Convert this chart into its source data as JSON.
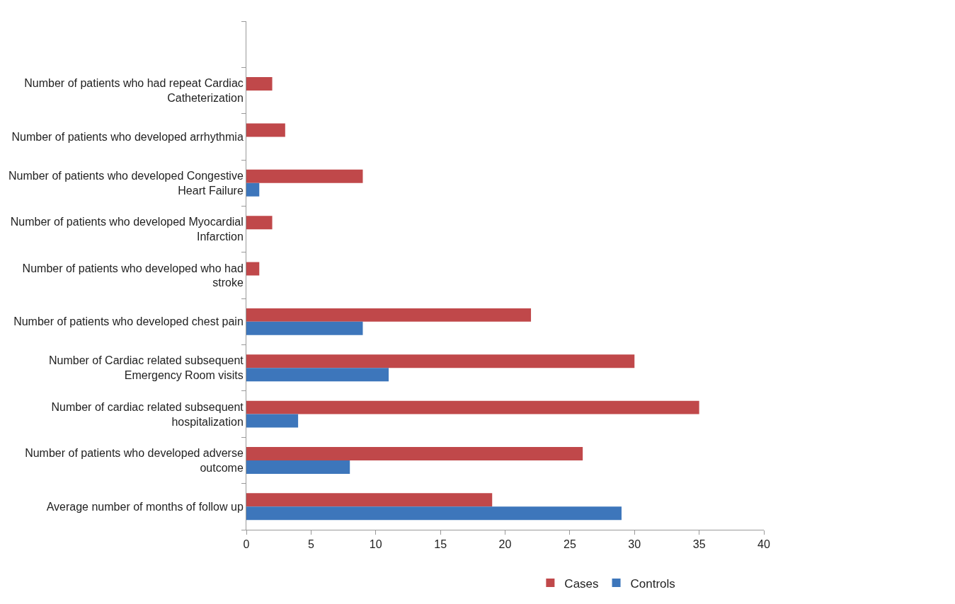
{
  "chart_data": {
    "type": "bar",
    "orientation": "horizontal",
    "categories": [
      null,
      "Number of patients who had repeat Cardiac Catheterization",
      "Number of patients who developed arrhythmia",
      "Number of patients who developed Congestive Heart Failure",
      "Number of patients who developed Myocardial Infarction",
      "Number of patients who developed who had stroke",
      "Number of patients who developed chest pain",
      "Number of Cardiac related subsequent Emergency Room visits",
      "Number of cardiac related subsequent hospitalization",
      "Number of patients who developed adverse outcome",
      "Average number of months of follow up"
    ],
    "series": [
      {
        "name": "Cases",
        "color": "#c0484a",
        "values": [
          null,
          2,
          3,
          9,
          2,
          1,
          22,
          30,
          35,
          26,
          19
        ]
      },
      {
        "name": "Controls",
        "color": "#3d76bb",
        "values": [
          null,
          null,
          null,
          1,
          null,
          null,
          9,
          11,
          4,
          8,
          29
        ]
      }
    ],
    "xlim": [
      0,
      40
    ],
    "xticks": [
      0,
      5,
      10,
      15,
      20,
      25,
      30,
      35,
      40
    ],
    "legend": "bottom"
  }
}
